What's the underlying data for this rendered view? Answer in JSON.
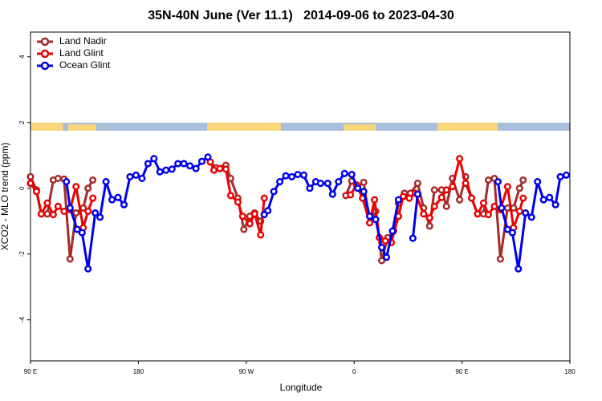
{
  "chart_data": {
    "type": "line",
    "title": "35N-40N June (Ver 11.1)   2014-09-06 to 2023-04-30",
    "xlabel": "Longitude",
    "ylabel": "XCO2 - MLO trend (ppm)",
    "xlim": [
      90,
      540
    ],
    "xticks": [
      {
        "value": 90,
        "label": "90 E"
      },
      {
        "value": 180,
        "label": "180"
      },
      {
        "value": 270,
        "label": "90 W"
      },
      {
        "value": 360,
        "label": "0"
      },
      {
        "value": 450,
        "label": "90 E"
      },
      {
        "value": 540,
        "label": "180"
      }
    ],
    "ylim": [
      -5.25,
      4.75
    ],
    "yticks": [
      -4,
      -2,
      0,
      2,
      4
    ],
    "legend": "top-left",
    "series": [
      {
        "name": "Land Nadir",
        "color": "#a52a2a",
        "x": [
          90,
          95,
          99,
          104,
          109,
          113,
          118,
          123,
          128,
          134,
          138,
          142,
          null,
          240,
          245,
          253,
          257,
          263,
          268,
          273,
          277,
          282,
          285,
          null,
          353,
          358,
          363,
          368,
          373,
          378,
          383,
          388,
          393,
          397,
          402,
          407,
          413,
          418,
          423,
          427,
          433,
          437,
          442,
          448,
          453,
          458,
          463,
          468,
          472,
          477,
          482,
          488,
          493,
          498,
          501
        ],
        "values": [
          0.35,
          -0.05,
          -0.78,
          -0.78,
          0.25,
          0.3,
          0.28,
          -2.15,
          -0.75,
          -0.6,
          0.0,
          0.25,
          null,
          0.8,
          0.62,
          0.7,
          0.3,
          -0.3,
          -1.25,
          -0.85,
          -0.75,
          -1.0,
          -0.8,
          null,
          -0.22,
          0.22,
          0.05,
          0.18,
          -1.05,
          -0.7,
          -2.2,
          -1.5,
          -1.3,
          -0.45,
          -0.15,
          -0.15,
          0.15,
          -0.6,
          -1.15,
          -0.05,
          -0.05,
          -0.55,
          0.3,
          -0.35,
          0.35,
          -0.3,
          -0.78,
          -0.78,
          0.25,
          0.3,
          -2.15,
          -0.6,
          -0.6,
          0.0,
          0.25
        ]
      },
      {
        "name": "Land Glint",
        "color": "#ee0000",
        "x": [
          90,
          95,
          99,
          104,
          109,
          113,
          118,
          123,
          128,
          134,
          138,
          142,
          null,
          240,
          243,
          248,
          253,
          257,
          263,
          267,
          273,
          277,
          282,
          285,
          null,
          357,
          362,
          367,
          373,
          377,
          381,
          386,
          391,
          397,
          401,
          406,
          411,
          418,
          423,
          427,
          433,
          437,
          442,
          448,
          453,
          458,
          463,
          468,
          472,
          477,
          482,
          488,
          493,
          498,
          501
        ],
        "values": [
          0.15,
          -0.1,
          -0.78,
          -0.45,
          -0.8,
          -0.55,
          -0.7,
          -0.65,
          0.05,
          -1.2,
          -0.7,
          -0.3,
          null,
          0.8,
          0.55,
          0.6,
          0.58,
          -0.22,
          -0.42,
          -0.85,
          -1.08,
          -0.78,
          -1.42,
          -0.3,
          null,
          -0.2,
          0.1,
          -0.3,
          -1.05,
          -0.35,
          -1.5,
          -1.6,
          -1.65,
          -0.85,
          -0.25,
          -0.3,
          -0.15,
          -0.78,
          -0.9,
          -0.55,
          -0.28,
          -0.05,
          0.05,
          0.9,
          0.15,
          -0.3,
          -0.78,
          -0.45,
          -0.8,
          -0.55,
          -0.65,
          0.05,
          -1.2,
          -0.7,
          -0.3
        ]
      },
      {
        "name": "Ocean Glint",
        "color": "#0000ee",
        "x": [
          120,
          123,
          129,
          133,
          138,
          144,
          148,
          153,
          158,
          163,
          168,
          173,
          178,
          183,
          188,
          193,
          198,
          203,
          208,
          213,
          218,
          223,
          228,
          233,
          238,
          null,
          285,
          288,
          293,
          298,
          303,
          308,
          313,
          318,
          323,
          328,
          332,
          338,
          342,
          347,
          352,
          358,
          363,
          368,
          373,
          378,
          383,
          387,
          392,
          397,
          null,
          409,
          413,
          null,
          480,
          483,
          488,
          492,
          497,
          503,
          508,
          513,
          518,
          523,
          528,
          532,
          537
        ],
        "values": [
          0.2,
          -0.6,
          -1.25,
          -1.35,
          -2.45,
          -0.75,
          -0.88,
          0.2,
          -0.35,
          -0.28,
          -0.5,
          0.35,
          0.4,
          0.3,
          0.75,
          0.9,
          0.5,
          0.55,
          0.58,
          0.75,
          0.75,
          0.68,
          0.6,
          0.82,
          0.95,
          null,
          -0.8,
          -0.68,
          -0.1,
          0.2,
          0.38,
          0.35,
          0.42,
          0.4,
          0.0,
          0.2,
          0.15,
          0.15,
          -0.18,
          0.2,
          0.45,
          0.42,
          0.0,
          -0.1,
          -0.85,
          -0.95,
          -1.8,
          -2.1,
          -1.3,
          -0.35,
          null,
          -1.52,
          -0.18,
          null,
          0.2,
          -0.6,
          -1.25,
          -1.35,
          -2.45,
          -0.75,
          -0.88,
          0.2,
          -0.35,
          -0.28,
          -0.5,
          0.35,
          0.4
        ]
      }
    ]
  }
}
